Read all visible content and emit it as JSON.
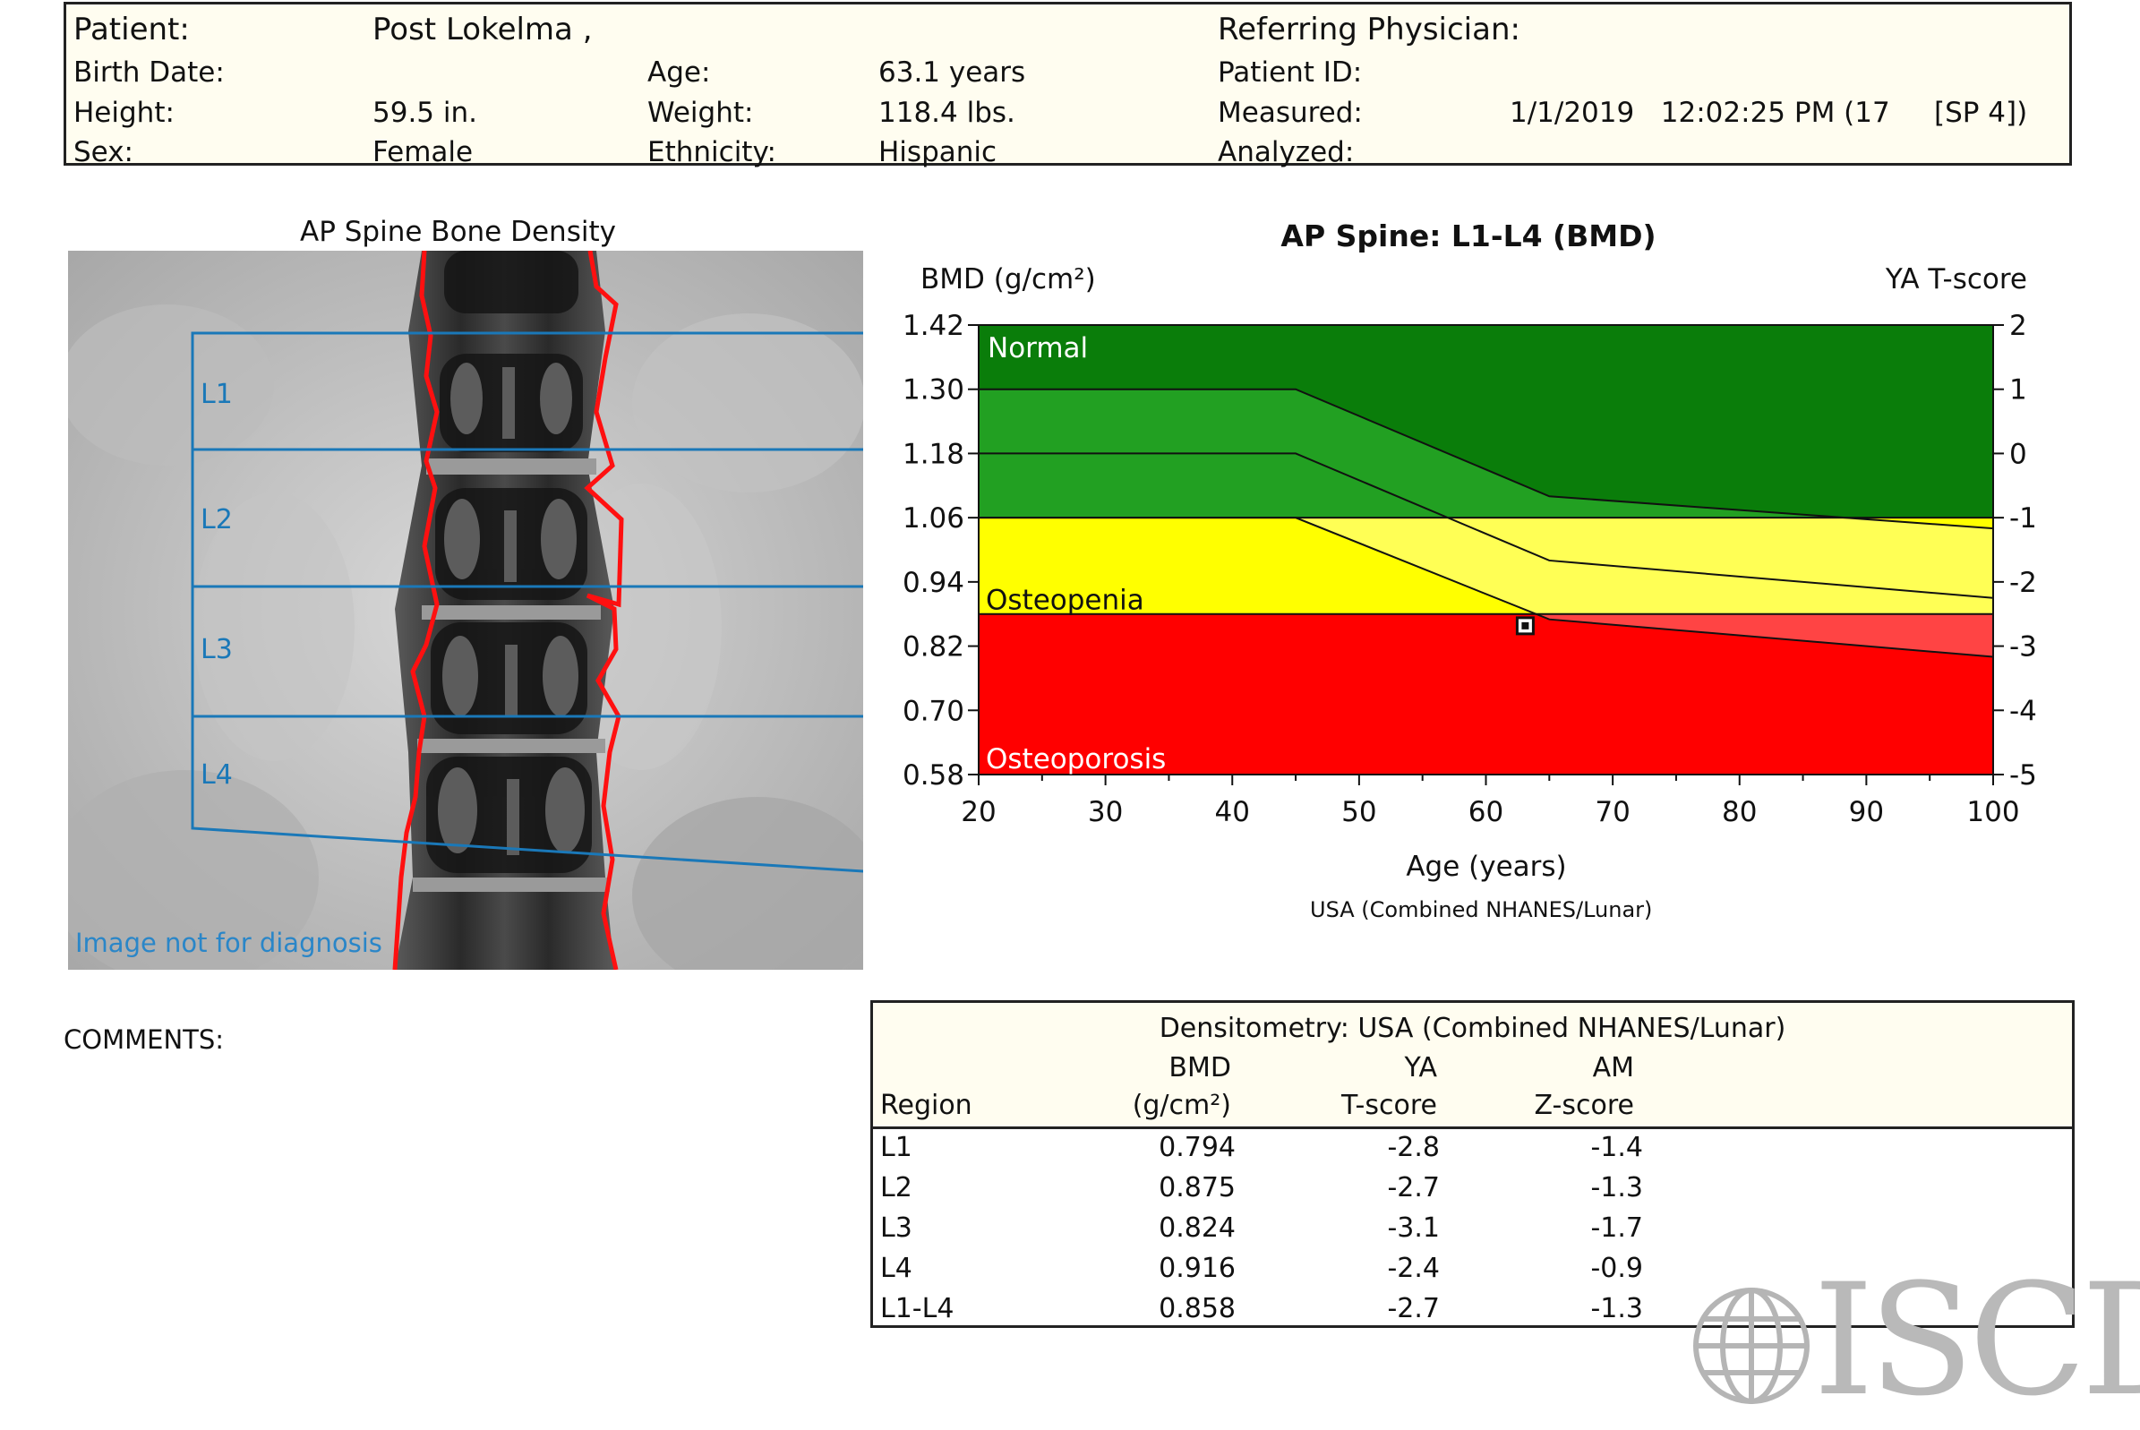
{
  "header": {
    "patient_label": "Patient:",
    "patient_value": "Post Lokelma ,",
    "birth_label": "Birth Date:",
    "birth_value": "",
    "height_label": "Height:",
    "height_value": "59.5 in.",
    "sex_label": "Sex:",
    "sex_value": "Female",
    "age_label": "Age:",
    "age_value": "63.1 years",
    "weight_label": "Weight:",
    "weight_value": "118.4 lbs.",
    "ethnicity_label": "Ethnicity:",
    "ethnicity_value": "Hispanic",
    "physician_label": "Referring Physician:",
    "physician_value": "",
    "patient_id_label": "Patient ID:",
    "patient_id_value": "",
    "measured_label": "Measured:",
    "measured_value": "1/1/2019   12:02:25 PM (17     [SP 4])",
    "analyzed_label": "Analyzed:",
    "analyzed_value": ""
  },
  "spine_image": {
    "title": "AP Spine Bone Density",
    "vertebra_labels": [
      "L1",
      "L2",
      "L3",
      "L4"
    ],
    "watermark": "Image not for diagnosis"
  },
  "chart_data": {
    "type": "area",
    "title": "AP Spine: L1-L4 (BMD)",
    "ylabel": "BMD (g/cm²)",
    "y2label": "YA T-score",
    "xlabel": "Age (years)",
    "x_ticks": [
      20,
      30,
      40,
      50,
      60,
      70,
      80,
      90,
      100
    ],
    "y_ticks": [
      "1.42",
      "1.30",
      "1.18",
      "1.06",
      "0.94",
      "0.82",
      "0.70",
      "0.58"
    ],
    "y_tick_values": [
      1.42,
      1.3,
      1.18,
      1.06,
      0.94,
      0.82,
      0.7,
      0.58
    ],
    "y2_ticks": [
      "2",
      "1",
      "0",
      "-1",
      "-2",
      "-3",
      "-4",
      "-5"
    ],
    "xlim": [
      20,
      100
    ],
    "ylim": [
      0.58,
      1.42
    ],
    "zones": [
      {
        "name": "Normal",
        "from": 1.06,
        "to": 1.42,
        "color": "#0a7d0a"
      },
      {
        "name": "Osteopenia",
        "from": 0.88,
        "to": 1.06,
        "color": "#ffff00"
      },
      {
        "name": "Osteoporosis",
        "from": 0.58,
        "to": 0.88,
        "color": "#ff0000"
      }
    ],
    "reference_curves": [
      {
        "x": [
          20,
          45,
          65,
          100
        ],
        "y": [
          1.3,
          1.3,
          1.1,
          1.04
        ]
      },
      {
        "x": [
          20,
          45,
          65,
          100
        ],
        "y": [
          1.18,
          1.18,
          0.98,
          0.91
        ]
      },
      {
        "x": [
          20,
          45,
          65,
          100
        ],
        "y": [
          1.06,
          1.06,
          0.87,
          0.8
        ]
      }
    ],
    "patient_point": {
      "x": 63.1,
      "y": 0.858
    },
    "reference_note": "USA (Combined NHANES/Lunar)"
  },
  "comments_label": "COMMENTS:",
  "results_table": {
    "caption": "Densitometry: USA (Combined NHANES/Lunar)",
    "col_bmd_top": "BMD",
    "col_bmd_unit": "(g/cm²)",
    "col_ya_top": "YA",
    "col_ya_bottom": "T-score",
    "col_am_top": "AM",
    "col_am_bottom": "Z-score",
    "col_region": "Region",
    "rows": [
      {
        "region": "L1",
        "bmd": "0.794",
        "t": "-2.8",
        "z": "-1.4"
      },
      {
        "region": "L2",
        "bmd": "0.875",
        "t": "-2.7",
        "z": "-1.3"
      },
      {
        "region": "L3",
        "bmd": "0.824",
        "t": "-3.1",
        "z": "-1.7"
      },
      {
        "region": "L4",
        "bmd": "0.916",
        "t": "-2.4",
        "z": "-0.9"
      },
      {
        "region": "L1-L4",
        "bmd": "0.858",
        "t": "-2.7",
        "z": "-1.3"
      }
    ]
  },
  "logo_text": "ISCD",
  "colors": {
    "normal_dark": "#0a7d0a",
    "normal_light": "#22a022",
    "osteopenia": "#ffff00",
    "osteopenia_light": "#ffff55",
    "osteoporosis": "#ff0000",
    "osteoporosis_light": "#ff4444",
    "roi_blue": "#1a78b8",
    "edge_red": "#ff1010"
  }
}
